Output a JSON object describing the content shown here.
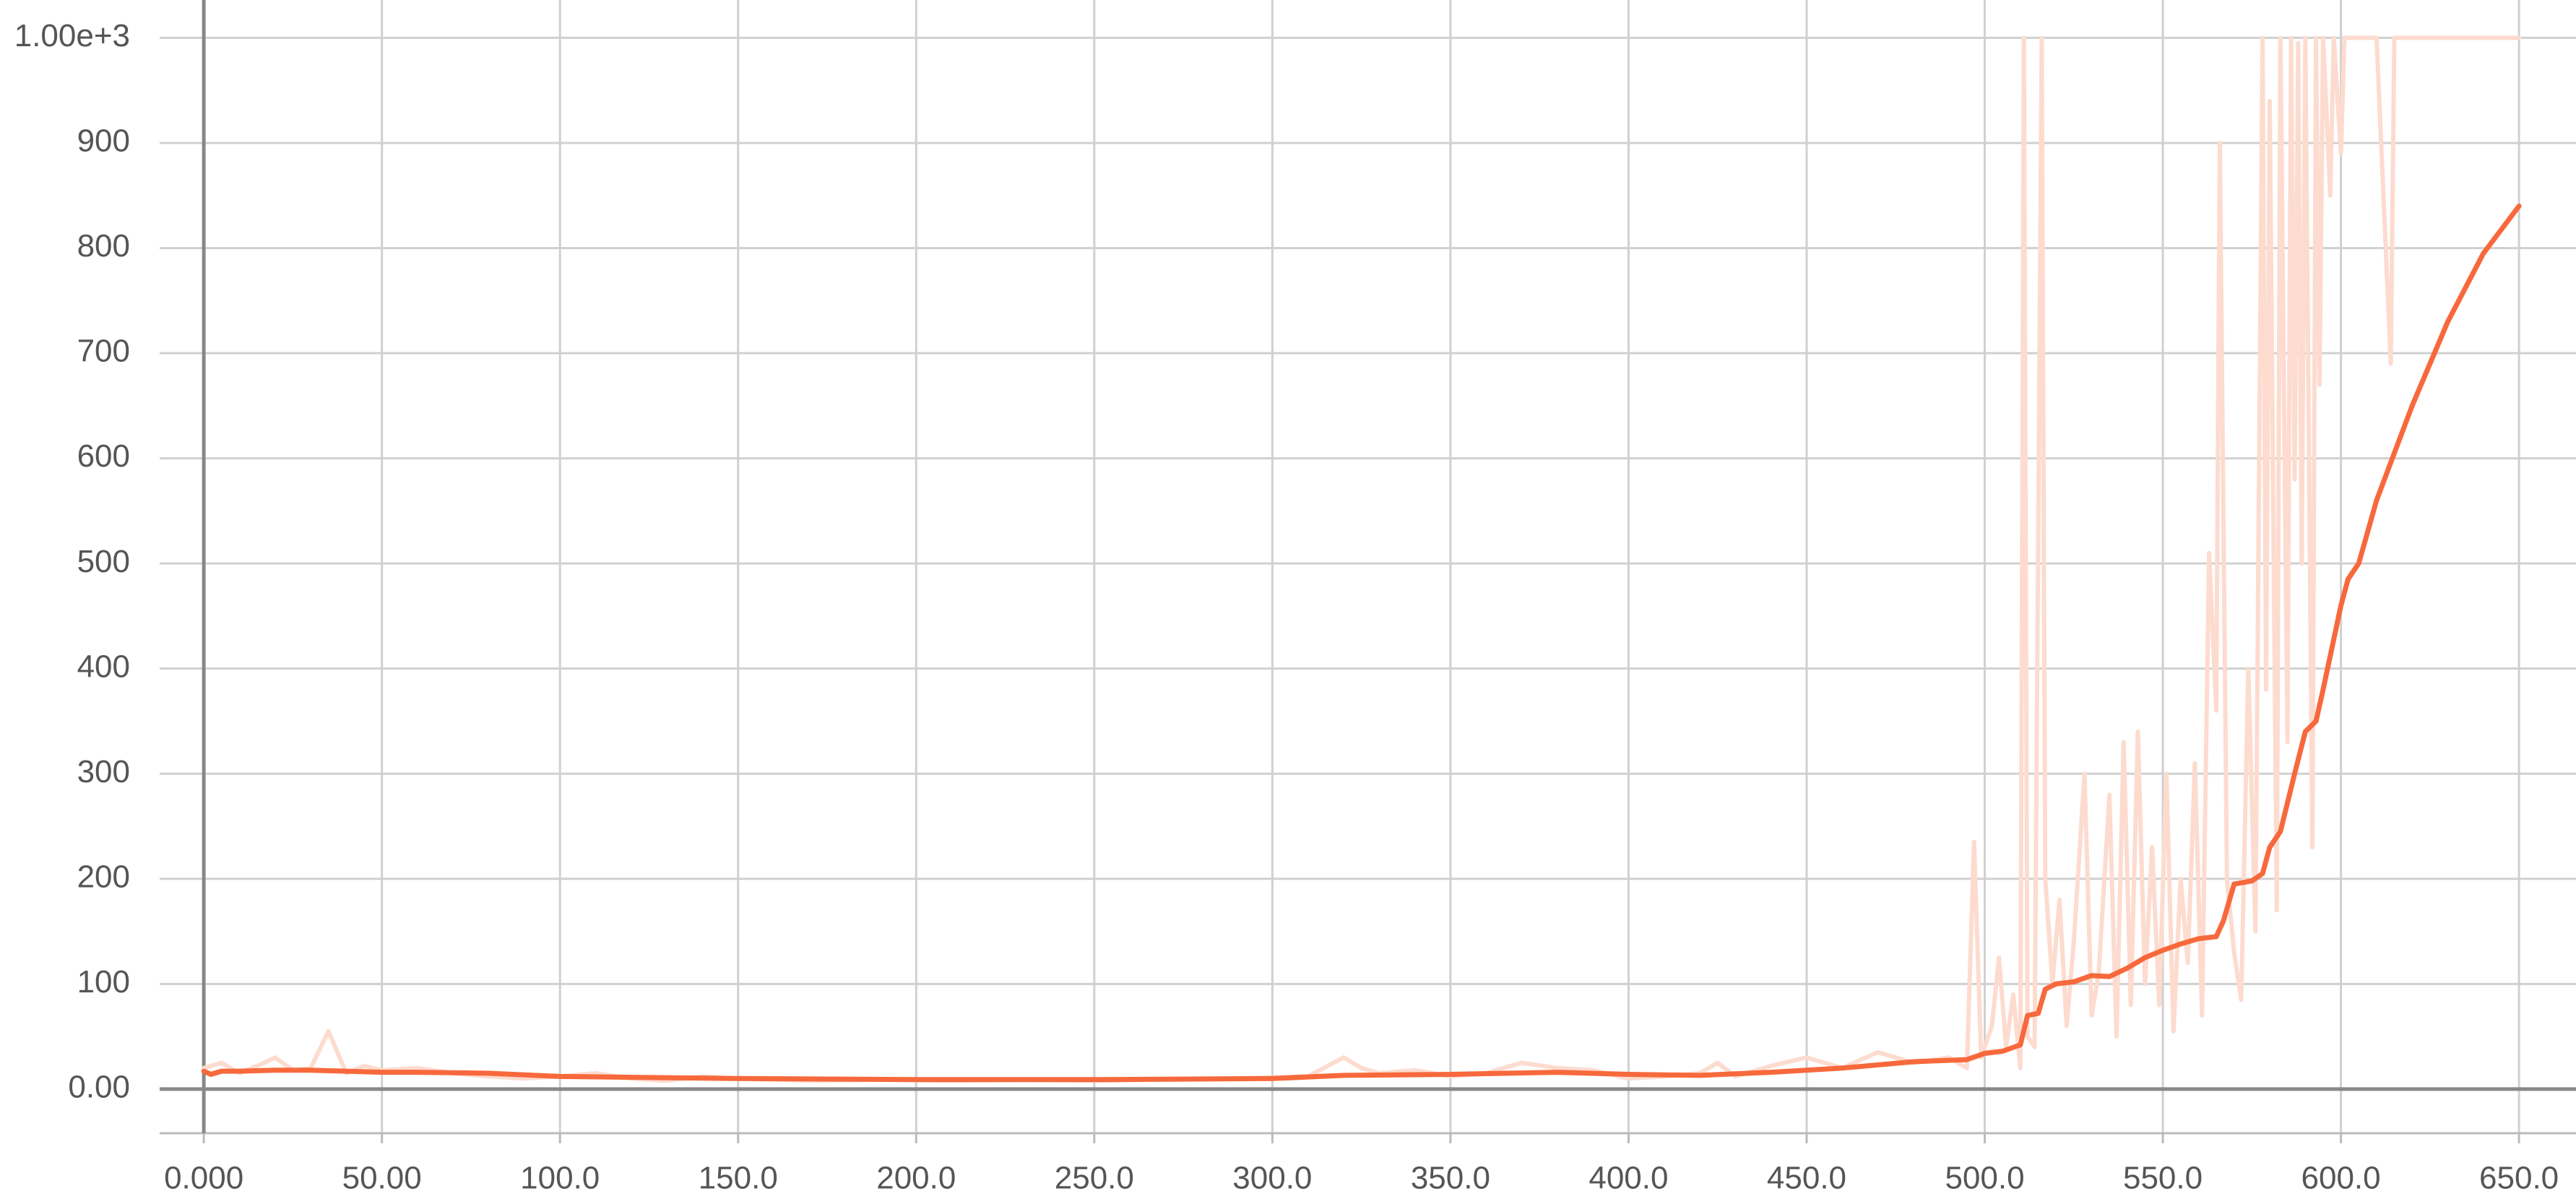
{
  "chart_data": {
    "type": "line",
    "grid": true,
    "xlim": [
      -12.4,
      666
    ],
    "ylim": [
      -42,
      1036
    ],
    "xticks": [
      {
        "value": 0,
        "label": "0.000"
      },
      {
        "value": 50,
        "label": "50.00"
      },
      {
        "value": 100,
        "label": "100.0"
      },
      {
        "value": 150,
        "label": "150.0"
      },
      {
        "value": 200,
        "label": "200.0"
      },
      {
        "value": 250,
        "label": "250.0"
      },
      {
        "value": 300,
        "label": "300.0"
      },
      {
        "value": 350,
        "label": "350.0"
      },
      {
        "value": 400,
        "label": "400.0"
      },
      {
        "value": 450,
        "label": "450.0"
      },
      {
        "value": 500,
        "label": "500.0"
      },
      {
        "value": 550,
        "label": "550.0"
      },
      {
        "value": 600,
        "label": "600.0"
      },
      {
        "value": 650,
        "label": "650.0"
      }
    ],
    "yticks": [
      {
        "value": 0,
        "label": "0.00"
      },
      100,
      200,
      300,
      400,
      500,
      600,
      700,
      800,
      900,
      {
        "value": 1000,
        "label": "1.00e+3"
      }
    ],
    "series": [
      {
        "color": "#fddbcf",
        "x": [
          0,
          5,
          10,
          15,
          20,
          25,
          30,
          35,
          40,
          45,
          50,
          60,
          70,
          80,
          90,
          100,
          110,
          120,
          130,
          140,
          150,
          170,
          190,
          210,
          230,
          250,
          270,
          290,
          310,
          320,
          325,
          330,
          340,
          350,
          360,
          370,
          380,
          390,
          400,
          410,
          420,
          425,
          430,
          440,
          450,
          460,
          470,
          480,
          490,
          495,
          497,
          499,
          502,
          504,
          506,
          508,
          510,
          511,
          512,
          514,
          516,
          517,
          519,
          521,
          523,
          525,
          528,
          530,
          532,
          535,
          537,
          539,
          541,
          543,
          545,
          547,
          549,
          551,
          553,
          555,
          557,
          559,
          561,
          563,
          565,
          566,
          568,
          570,
          572,
          574,
          576,
          578,
          579,
          580,
          582,
          583,
          585,
          586,
          587,
          588,
          589,
          590,
          592,
          593,
          594,
          595,
          597,
          598,
          600,
          601,
          604,
          610,
          614,
          615,
          620,
          650
        ],
        "values": [
          20,
          25,
          15,
          22,
          30,
          18,
          20,
          55,
          15,
          22,
          18,
          20,
          15,
          12,
          10,
          12,
          15,
          10,
          8,
          12,
          10,
          8,
          9,
          8,
          9,
          8,
          9,
          10,
          12,
          30,
          20,
          15,
          18,
          12,
          15,
          25,
          20,
          18,
          10,
          12,
          15,
          25,
          12,
          22,
          30,
          20,
          35,
          25,
          30,
          20,
          235,
          30,
          60,
          125,
          40,
          90,
          20,
          1000,
          50,
          40,
          1000,
          200,
          100,
          180,
          60,
          140,
          300,
          70,
          110,
          280,
          50,
          330,
          80,
          340,
          100,
          230,
          80,
          300,
          55,
          200,
          120,
          310,
          70,
          510,
          360,
          900,
          200,
          130,
          85,
          400,
          150,
          1000,
          380,
          940,
          170,
          1000,
          330,
          1000,
          580,
          995,
          500,
          1000,
          230,
          1000,
          670,
          1000,
          850,
          1000,
          890,
          1000,
          1000,
          1000,
          690,
          1000,
          1000,
          1000
        ]
      },
      {
        "color": "#f7693c",
        "x": [
          0,
          2,
          5,
          10,
          20,
          30,
          40,
          50,
          60,
          80,
          100,
          150,
          200,
          250,
          300,
          320,
          350,
          380,
          400,
          420,
          440,
          460,
          480,
          495,
          500,
          505,
          510,
          512,
          515,
          517,
          520,
          525,
          530,
          535,
          540,
          545,
          550,
          555,
          560,
          565,
          567,
          570,
          575,
          578,
          580,
          583,
          587,
          590,
          593,
          595,
          600,
          602,
          605,
          610,
          615,
          620,
          630,
          640,
          650
        ],
        "values": [
          17,
          14,
          17,
          17,
          18,
          18,
          17,
          16,
          16,
          15,
          12,
          10,
          9,
          9,
          10,
          13,
          14,
          16,
          14,
          13,
          16,
          20,
          26,
          28,
          34,
          36,
          42,
          70,
          72,
          95,
          100,
          102,
          108,
          107,
          115,
          125,
          132,
          138,
          143,
          145,
          160,
          195,
          198,
          205,
          230,
          245,
          300,
          340,
          350,
          380,
          460,
          485,
          500,
          560,
          605,
          650,
          730,
          795,
          840
        ]
      }
    ]
  }
}
